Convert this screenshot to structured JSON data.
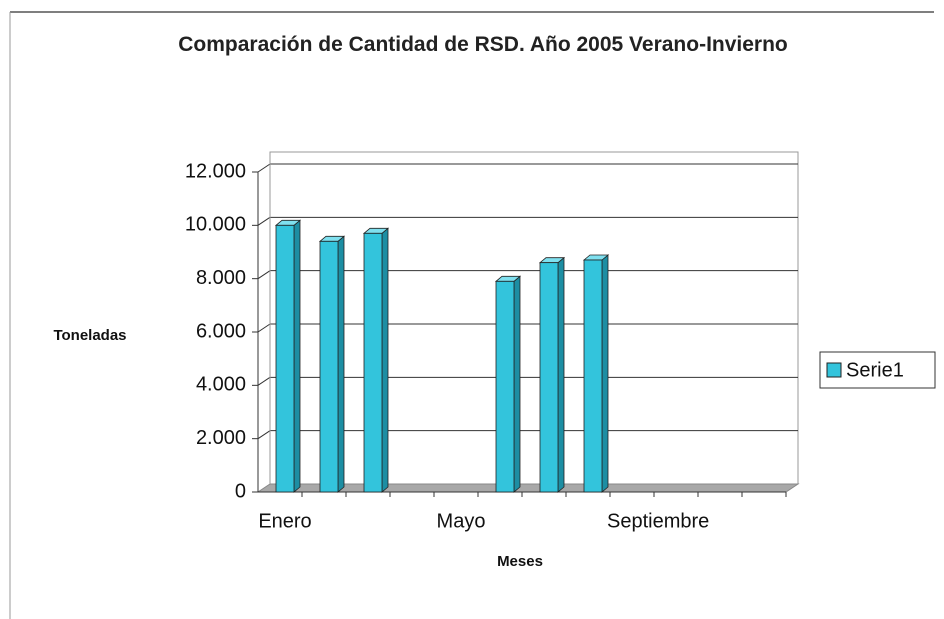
{
  "chart_data": {
    "type": "bar",
    "title": "Comparación de Cantidad de RSD. Año 2005 Verano-Invierno",
    "x_label": "Meses",
    "y_label": "Toneladas",
    "categories": [
      "Enero",
      null,
      null,
      null,
      "Mayo",
      null,
      null,
      null,
      "Septiembre",
      null,
      null,
      null
    ],
    "series": [
      {
        "name": "Serie1",
        "color": "#33c4dc",
        "values": [
          10000,
          9400,
          9700,
          null,
          null,
          7900,
          8600,
          8700,
          null,
          null,
          null,
          null
        ]
      }
    ],
    "ylim": [
      0,
      12000
    ],
    "yticks": [
      {
        "value": 0,
        "label": "0"
      },
      {
        "value": 2000,
        "label": "2.000"
      },
      {
        "value": 4000,
        "label": "4.000"
      },
      {
        "value": 6000,
        "label": "6.000"
      },
      {
        "value": 8000,
        "label": "8.000"
      },
      {
        "value": 10000,
        "label": "10.000"
      },
      {
        "value": 12000,
        "label": "12.000"
      }
    ],
    "grid": true,
    "legend": "right"
  }
}
